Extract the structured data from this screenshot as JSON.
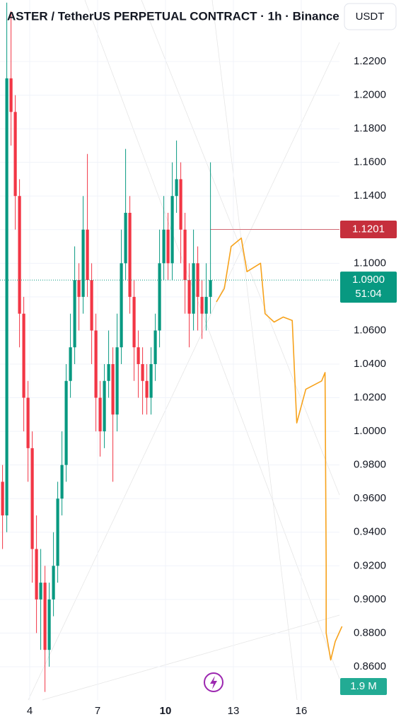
{
  "chart_data": {
    "type": "candlestick",
    "title": "ASTER / TetherUS PERPETUAL CONTRACT · 1h · Binance",
    "currency_button": "USDT",
    "up_color": "#089981",
    "down_color": "#f23645",
    "x": [
      2.8,
      2.9875,
      3.175,
      3.3625,
      3.55,
      3.7375,
      3.925,
      4.1125,
      4.3,
      4.4875,
      4.675,
      4.8625,
      5.05,
      5.2375,
      5.425,
      5.6125,
      5.8,
      5.9875,
      6.175,
      6.3625,
      6.55,
      6.7375,
      6.925,
      7.1125,
      7.3,
      7.4875,
      7.675,
      7.8625,
      8.05,
      8.2375,
      8.425,
      8.6125,
      8.8,
      8.9875,
      9.175,
      9.3625,
      9.55,
      9.7375,
      9.925,
      10.1125,
      10.3,
      10.4875,
      10.675,
      10.8625,
      11.05,
      11.2375,
      11.425,
      11.6125,
      11.8,
      11.9875
    ],
    "open": [
      0.97,
      0.95,
      1.21,
      1.19,
      1.14,
      1.07,
      1.02,
      0.99,
      0.93,
      0.9,
      0.91,
      0.87,
      0.9,
      0.92,
      0.96,
      0.98,
      1.03,
      1.05,
      1.09,
      1.08,
      1.12,
      1.09,
      1.06,
      1.02,
      1.0,
      1.03,
      1.04,
      1.01,
      1.05,
      1.1,
      1.13,
      1.08,
      1.05,
      1.04,
      1.03,
      1.02,
      1.04,
      1.06,
      1.1,
      1.12,
      1.1,
      1.14,
      1.15,
      1.12,
      1.09,
      1.07,
      1.1,
      1.08,
      1.07,
      1.08
    ],
    "high": [
      0.98,
      1.255,
      1.25,
      1.2,
      1.15,
      1.08,
      1.03,
      1.0,
      0.95,
      0.93,
      0.92,
      0.91,
      0.94,
      0.97,
      1.0,
      1.04,
      1.07,
      1.11,
      1.1,
      1.14,
      1.165,
      1.1,
      1.07,
      1.03,
      1.04,
      1.06,
      1.05,
      1.07,
      1.12,
      1.168,
      1.14,
      1.09,
      1.06,
      1.05,
      1.04,
      1.05,
      1.07,
      1.12,
      1.14,
      1.13,
      1.16,
      1.173,
      1.16,
      1.13,
      1.1,
      1.12,
      1.11,
      1.09,
      1.1,
      1.16
    ],
    "low": [
      0.93,
      0.94,
      1.17,
      1.12,
      1.05,
      1.0,
      0.97,
      0.91,
      0.88,
      0.87,
      0.845,
      0.86,
      0.89,
      0.91,
      0.95,
      0.97,
      1.02,
      1.04,
      1.06,
      1.07,
      1.08,
      1.04,
      1.0,
      0.985,
      0.99,
      1.02,
      0.97,
      1.0,
      1.04,
      1.09,
      1.07,
      1.03,
      1.02,
      1.01,
      1.01,
      1.01,
      1.03,
      1.05,
      1.09,
      1.09,
      1.09,
      1.13,
      1.1,
      1.07,
      1.05,
      1.06,
      1.06,
      1.055,
      1.06,
      1.07
    ],
    "close": [
      0.95,
      1.21,
      1.19,
      1.14,
      1.07,
      1.02,
      0.99,
      0.93,
      0.9,
      0.91,
      0.87,
      0.9,
      0.92,
      0.96,
      0.98,
      1.03,
      1.05,
      1.09,
      1.08,
      1.12,
      1.09,
      1.06,
      1.02,
      1.0,
      1.03,
      1.04,
      1.01,
      1.05,
      1.1,
      1.13,
      1.08,
      1.05,
      1.04,
      1.03,
      1.02,
      1.04,
      1.06,
      1.1,
      1.12,
      1.1,
      1.14,
      1.15,
      1.12,
      1.09,
      1.07,
      1.1,
      1.08,
      1.07,
      1.08,
      1.09
    ],
    "projection": {
      "color": "#f7a21b",
      "x": [
        12.25,
        12.6,
        12.9,
        13.35,
        13.6,
        14.2,
        14.4,
        14.8,
        15.2,
        15.6,
        15.8,
        16.2,
        16.9,
        17.05,
        17.1,
        17.1,
        17.3,
        17.5,
        17.8
      ],
      "values": [
        1.077,
        1.085,
        1.11,
        1.115,
        1.095,
        1.1,
        1.07,
        1.065,
        1.068,
        1.066,
        1.005,
        1.025,
        1.03,
        1.035,
        0.92,
        0.88,
        0.864,
        0.875,
        0.884
      ]
    },
    "high_line": {
      "value": 1.1201,
      "label": "1.1201",
      "color": "#c62f3c"
    },
    "last_price": {
      "value": 1.09,
      "label": "1.0900",
      "countdown": "51:04",
      "color": "#089981"
    },
    "volume_label": "1.9 M",
    "xlim": [
      2.6875,
      17.6875
    ],
    "xticks": [
      4,
      7,
      10,
      13,
      16
    ],
    "bold_xtick": 10,
    "ylim": [
      0.84,
      1.2566
    ],
    "yticks": [
      {
        "value": 0.86,
        "label": "0.8600"
      },
      {
        "value": 0.88,
        "label": "0.8800"
      },
      {
        "value": 0.9,
        "label": "0.9000"
      },
      {
        "value": 0.92,
        "label": "0.9200"
      },
      {
        "value": 0.94,
        "label": "0.9400"
      },
      {
        "value": 0.96,
        "label": "0.9600"
      },
      {
        "value": 0.98,
        "label": "0.9800"
      },
      {
        "value": 1.0,
        "label": "1.0000"
      },
      {
        "value": 1.02,
        "label": "1.0200"
      },
      {
        "value": 1.04,
        "label": "1.0400"
      },
      {
        "value": 1.06,
        "label": "1.0600"
      },
      {
        "value": 1.08,
        "label": "1.0800"
      },
      {
        "value": 1.1,
        "label": "1.1000"
      },
      {
        "value": 1.12,
        "label": "1.1200"
      },
      {
        "value": 1.14,
        "label": "1.1400"
      },
      {
        "value": 1.16,
        "label": "1.1600"
      },
      {
        "value": 1.18,
        "label": "1.1800"
      },
      {
        "value": 1.2,
        "label": "1.2000"
      },
      {
        "value": 1.22,
        "label": "1.2200"
      }
    ],
    "grid": true
  }
}
